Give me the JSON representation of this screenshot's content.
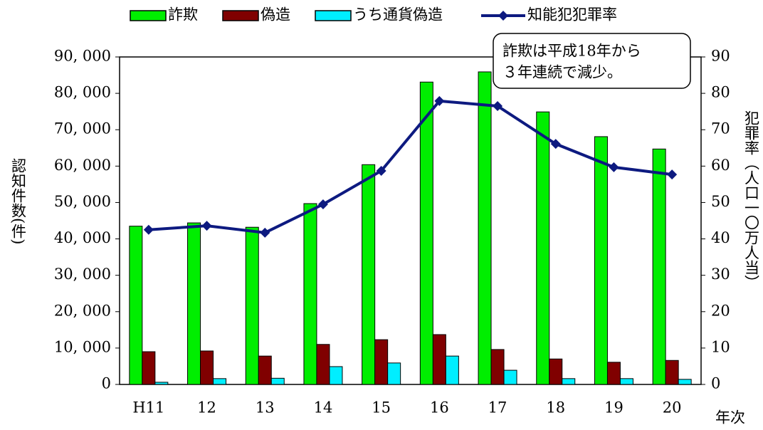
{
  "chart_data": {
    "type": "bar_line",
    "categories": [
      "H11",
      "12",
      "13",
      "14",
      "15",
      "16",
      "17",
      "18",
      "19",
      "20"
    ],
    "series": [
      {
        "name": "詐欺",
        "color": "#00ee00",
        "type": "bar",
        "values": [
          43500,
          44400,
          43200,
          49700,
          60400,
          83100,
          85900,
          74900,
          68100,
          64700
        ]
      },
      {
        "name": "偽造",
        "color": "#800000",
        "type": "bar",
        "values": [
          9000,
          9200,
          7800,
          11000,
          12300,
          13700,
          9600,
          7000,
          6100,
          6600
        ]
      },
      {
        "name": "うち通貨偽造",
        "color": "#00eeff",
        "type": "bar",
        "values": [
          600,
          1600,
          1700,
          4900,
          5900,
          7800,
          3900,
          1600,
          1600,
          1400
        ]
      },
      {
        "name": "知能犯犯罪率",
        "color": "#0d1a80",
        "type": "line",
        "axis": "y2",
        "values": [
          42.5,
          43.6,
          41.7,
          49.5,
          58.7,
          77.9,
          76.5,
          66.1,
          59.7,
          57.7
        ]
      }
    ],
    "ylim": [
      0,
      90000
    ],
    "yticks": [
      0,
      {
        "value": 10000,
        "label": "10, 000"
      },
      {
        "value": 20000,
        "label": "20, 000"
      },
      {
        "value": 30000,
        "label": "30, 000"
      },
      {
        "value": 40000,
        "label": "40, 000"
      },
      {
        "value": 50000,
        "label": "50, 000"
      },
      {
        "value": 60000,
        "label": "60, 000"
      },
      {
        "value": 70000,
        "label": "70, 000"
      },
      {
        "value": 80000,
        "label": "80, 000"
      },
      {
        "value": 90000,
        "label": "90, 000"
      }
    ],
    "y2lim": [
      0,
      90
    ],
    "y2ticks": [
      0,
      10,
      20,
      30,
      40,
      50,
      60,
      70,
      80,
      90
    ],
    "ylabel": "認知件数(件)",
    "y2label": "犯罪率（人口一〇万人当）",
    "xlabel": "年次",
    "annotation": [
      "詐欺は平成18年から",
      "３年連続で減少。"
    ],
    "legend": "top"
  }
}
